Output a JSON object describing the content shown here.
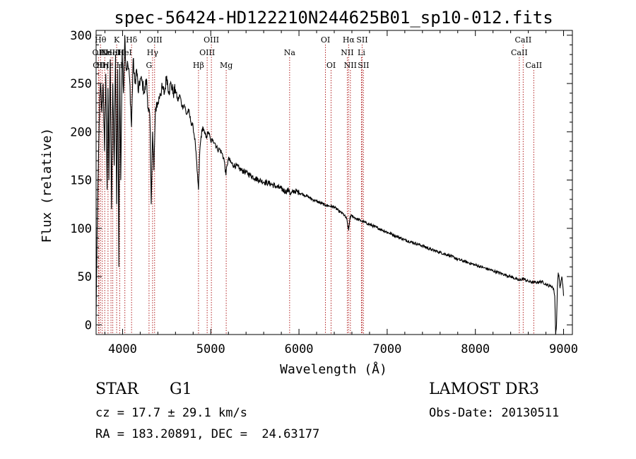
{
  "chart_data": {
    "type": "line",
    "title": "spec-56424-HD122210N244625B01_sp10-012.fits",
    "xlabel": "Wavelength (Å)",
    "ylabel": "Flux (relative)",
    "xlim": [
      3700,
      9100
    ],
    "ylim": [
      -10,
      305
    ],
    "x_ticks": [
      4000,
      5000,
      6000,
      7000,
      8000,
      9000
    ],
    "y_ticks": [
      0,
      50,
      100,
      150,
      200,
      250,
      300
    ],
    "x_tick_labels": [
      "4000",
      "5000",
      "6000",
      "7000",
      "8000",
      "9000"
    ],
    "y_tick_labels": [
      "0",
      "50",
      "100",
      "150",
      "200",
      "250",
      "300"
    ],
    "grid": false,
    "series": [
      {
        "name": "spectrum",
        "x": [
          3700,
          3712,
          3725,
          3735,
          3750,
          3765,
          3780,
          3795,
          3810,
          3825,
          3835,
          3845,
          3860,
          3875,
          3889,
          3905,
          3920,
          3933,
          3945,
          3958,
          3968,
          3980,
          3995,
          4010,
          4025,
          4040,
          4060,
          4080,
          4101,
          4120,
          4140,
          4160,
          4180,
          4200,
          4225,
          4250,
          4270,
          4290,
          4310,
          4325,
          4340,
          4355,
          4370,
          4385,
          4400,
          4425,
          4450,
          4475,
          4500,
          4525,
          4550,
          4575,
          4600,
          4625,
          4650,
          4675,
          4700,
          4725,
          4750,
          4775,
          4800,
          4825,
          4845,
          4861,
          4875,
          4890,
          4910,
          4930,
          4950,
          4975,
          5000,
          5025,
          5050,
          5075,
          5100,
          5125,
          5150,
          5172,
          5183,
          5200,
          5230,
          5260,
          5290,
          5320,
          5350,
          5400,
          5450,
          5500,
          5550,
          5600,
          5650,
          5700,
          5750,
          5800,
          5850,
          5890,
          5900,
          5950,
          6000,
          6050,
          6100,
          6150,
          6200,
          6250,
          6300,
          6350,
          6400,
          6450,
          6500,
          6540,
          6563,
          6580,
          6600,
          6650,
          6700,
          6750,
          6800,
          6850,
          6900,
          6950,
          7000,
          7100,
          7200,
          7300,
          7400,
          7500,
          7600,
          7700,
          7800,
          7900,
          8000,
          8100,
          8200,
          8300,
          8400,
          8498,
          8542,
          8600,
          8662,
          8700,
          8750,
          8800,
          8850,
          8870,
          8890,
          8900,
          8910,
          8920,
          8930,
          8940,
          8950,
          8960,
          8970,
          8980,
          8990,
          9000
        ],
        "values": [
          10,
          100,
          160,
          210,
          250,
          220,
          250,
          180,
          260,
          140,
          245,
          150,
          275,
          120,
          250,
          165,
          280,
          125,
          265,
          60,
          270,
          150,
          285,
          240,
          300,
          265,
          270,
          255,
          205,
          275,
          250,
          265,
          240,
          255,
          250,
          240,
          255,
          225,
          215,
          125,
          200,
          160,
          215,
          230,
          228,
          240,
          245,
          240,
          258,
          242,
          250,
          240,
          244,
          232,
          238,
          226,
          228,
          218,
          222,
          210,
          205,
          188,
          160,
          140,
          180,
          195,
          205,
          198,
          195,
          200,
          190,
          192,
          188,
          182,
          182,
          178,
          172,
          155,
          165,
          172,
          168,
          165,
          165,
          162,
          160,
          158,
          155,
          152,
          150,
          148,
          147,
          145,
          143,
          141,
          138,
          140,
          135,
          139,
          137,
          135,
          133,
          130,
          128,
          126,
          124,
          123,
          122,
          118,
          115,
          110,
          98,
          112,
          113,
          110,
          108,
          106,
          104,
          102,
          100,
          98,
          96,
          92,
          88,
          85,
          82,
          78,
          75,
          72,
          68,
          65,
          62,
          59,
          56,
          53,
          50,
          46,
          48,
          45,
          44,
          44,
          45,
          42,
          40,
          40,
          36,
          30,
          -10,
          0,
          40,
          54,
          48,
          38,
          45,
          50,
          42,
          30
        ]
      }
    ],
    "lines": [
      {
        "x": 3727,
        "label": "OII",
        "row": 1
      },
      {
        "x": 3733,
        "label": "OII",
        "row": 2
      },
      {
        "x": 3750,
        "label": "Hθ",
        "row": 0
      },
      {
        "x": 3770,
        "label": "Hη",
        "row": 2
      },
      {
        "x": 3798,
        "label": "Hε",
        "row": 1
      },
      {
        "x": 3835,
        "label": "Hε",
        "row": 2
      },
      {
        "x": 3869,
        "label": "NeIII",
        "row": 1
      },
      {
        "x": 3889,
        "label": "HeI",
        "row": 1
      },
      {
        "x": 3933,
        "label": "K",
        "row": 0
      },
      {
        "x": 3968,
        "label": "H",
        "row": 2
      },
      {
        "x": 4026,
        "label": "HeI",
        "row": 1
      },
      {
        "x": 4102,
        "label": "Hδ",
        "row": 0
      },
      {
        "x": 4300,
        "label": "G",
        "row": 2
      },
      {
        "x": 4340,
        "label": "Hγ",
        "row": 1
      },
      {
        "x": 4363,
        "label": "OIII",
        "row": 0
      },
      {
        "x": 4861,
        "label": "Hβ",
        "row": 2
      },
      {
        "x": 4959,
        "label": "OIII",
        "row": 1
      },
      {
        "x": 5007,
        "label": "OIII",
        "row": 0
      },
      {
        "x": 5175,
        "label": "Mg",
        "row": 2
      },
      {
        "x": 5894,
        "label": "Na",
        "row": 1
      },
      {
        "x": 6300,
        "label": "OI",
        "row": 0
      },
      {
        "x": 6364,
        "label": "OI",
        "row": 2
      },
      {
        "x": 6548,
        "label": "NII",
        "row": 1
      },
      {
        "x": 6563,
        "label": "Hα",
        "row": 0
      },
      {
        "x": 6583,
        "label": "NII",
        "row": 2
      },
      {
        "x": 6708,
        "label": "Li",
        "row": 1
      },
      {
        "x": 6716,
        "label": "SII",
        "row": 0
      },
      {
        "x": 6731,
        "label": "SII",
        "row": 2
      },
      {
        "x": 8498,
        "label": "CaII",
        "row": 1
      },
      {
        "x": 8542,
        "label": "CaII",
        "row": 0
      },
      {
        "x": 8662,
        "label": "CaII",
        "row": 2
      }
    ]
  },
  "info": {
    "class": "STAR",
    "subclass": "G1",
    "survey": "LAMOST DR3",
    "cz": "cz = 17.7 ± 29.1 km/s",
    "obs_date": "Obs-Date: 20130511",
    "radec": "RA = 183.20891, DEC =  24.63177"
  },
  "colors": {
    "line_marker": "#b22222",
    "spectrum": "#000000"
  }
}
